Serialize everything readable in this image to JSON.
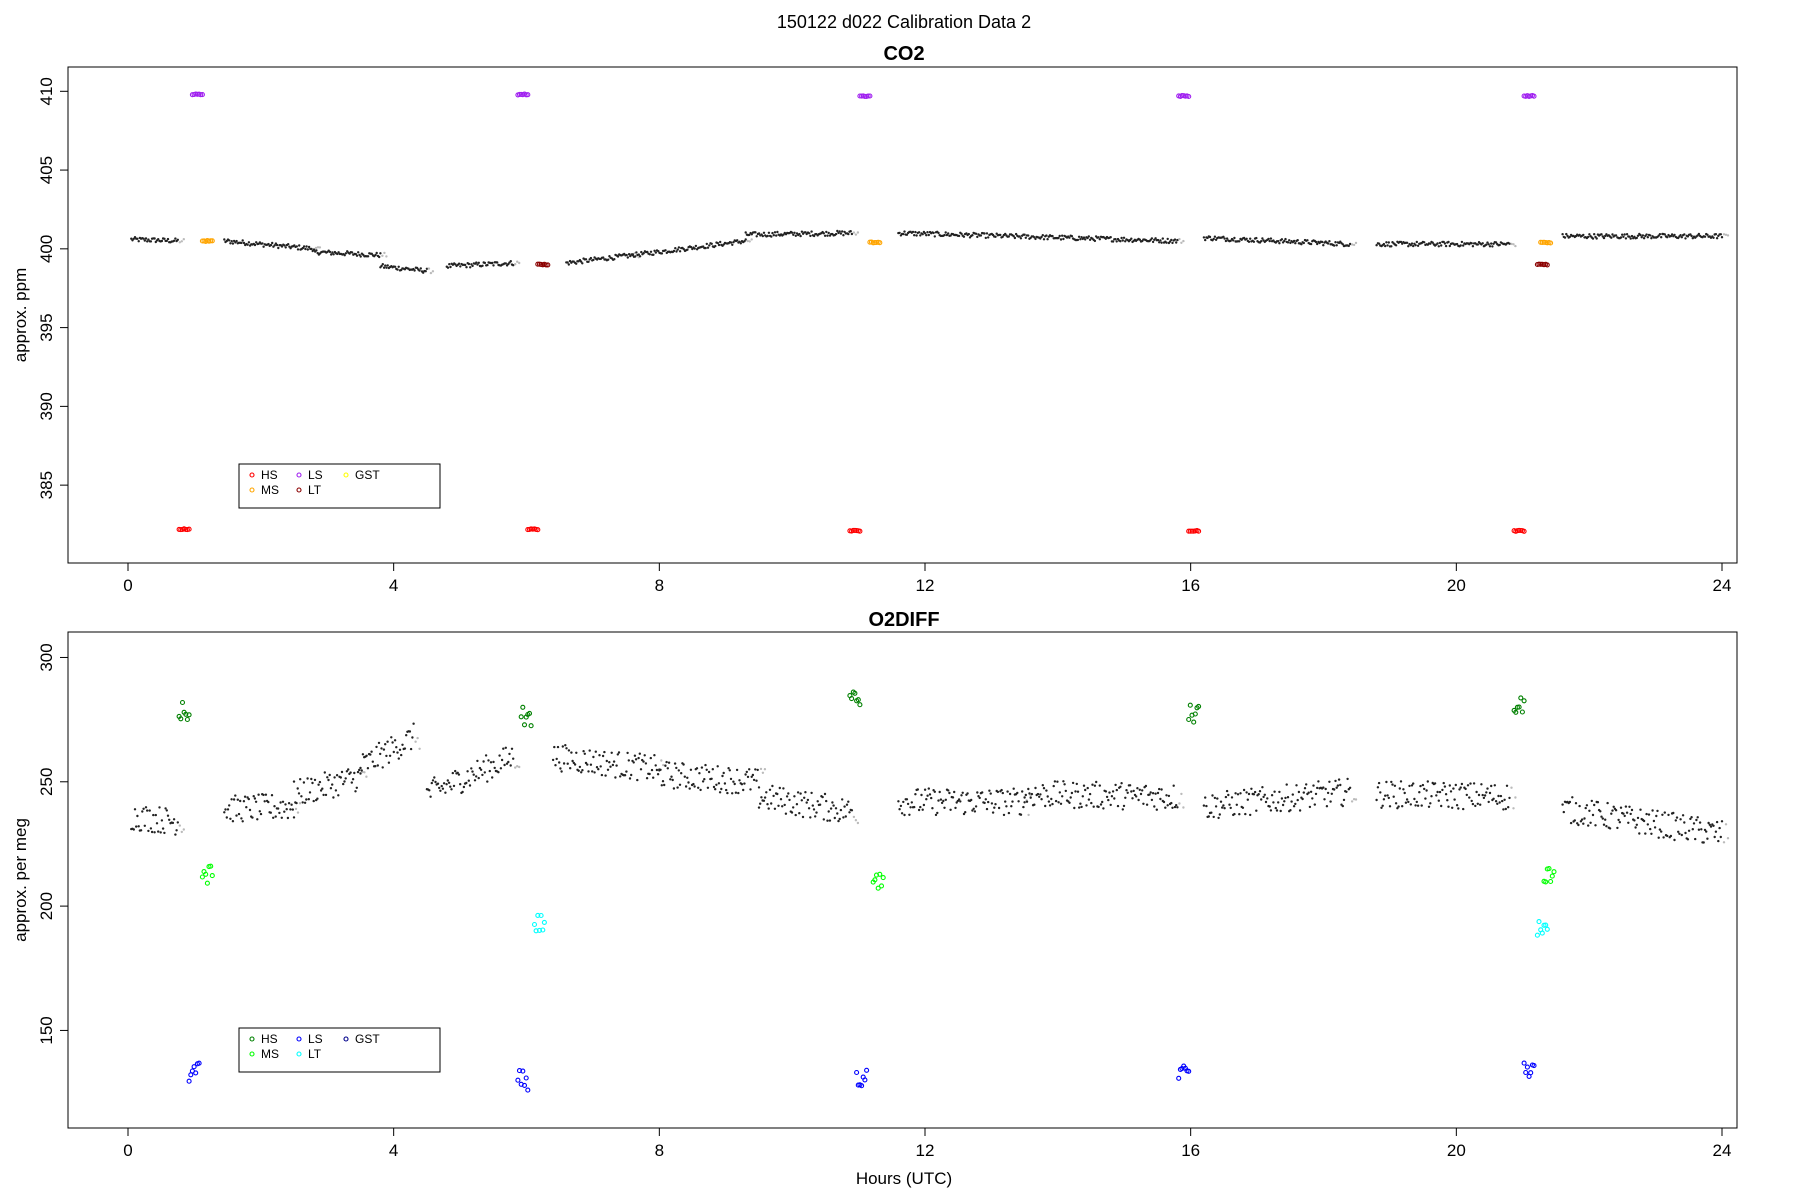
{
  "figure_title": "150122   d022   Calibration Data 2",
  "chart_data": [
    {
      "type": "scatter",
      "title": "CO2",
      "xlabel": "",
      "ylabel": "approx. ppm",
      "xlim": [
        0,
        24
      ],
      "ylim": [
        381.2,
        410.4
      ],
      "xticks": [
        0,
        4,
        8,
        12,
        16,
        20,
        24
      ],
      "yticks": [
        385,
        390,
        395,
        400,
        405,
        410
      ],
      "ambient_segments": [
        {
          "x0": 0.05,
          "x1": 0.75,
          "y0": 400.6,
          "y1": 400.5
        },
        {
          "x0": 1.45,
          "x1": 2.8,
          "y0": 400.5,
          "y1": 400.0
        },
        {
          "x0": 2.8,
          "x1": 3.8,
          "y0": 399.8,
          "y1": 399.6
        },
        {
          "x0": 3.8,
          "x1": 4.5,
          "y0": 398.9,
          "y1": 398.6
        },
        {
          "x0": 4.8,
          "x1": 5.8,
          "y0": 398.9,
          "y1": 399.1
        },
        {
          "x0": 6.6,
          "x1": 7.6,
          "y0": 399.1,
          "y1": 399.6
        },
        {
          "x0": 7.6,
          "x1": 9.3,
          "y0": 399.6,
          "y1": 400.5
        },
        {
          "x0": 9.3,
          "x1": 10.9,
          "y0": 400.9,
          "y1": 401.0
        },
        {
          "x0": 11.6,
          "x1": 15.8,
          "y0": 401.0,
          "y1": 400.5
        },
        {
          "x0": 16.2,
          "x1": 18.4,
          "y0": 400.7,
          "y1": 400.3
        },
        {
          "x0": 18.8,
          "x1": 20.8,
          "y0": 400.3,
          "y1": 400.3
        },
        {
          "x0": 21.6,
          "x1": 24.0,
          "y0": 400.8,
          "y1": 400.8
        }
      ],
      "calibration_groups": [
        {
          "name": "HS",
          "color": "#ff0000",
          "points": [
            [
              0.85,
              382.2
            ],
            [
              6.1,
              382.2
            ],
            [
              10.95,
              382.1
            ],
            [
              16.05,
              382.1
            ],
            [
              20.95,
              382.1
            ]
          ]
        },
        {
          "name": "LS",
          "color": "#a020f0",
          "points": [
            [
              1.05,
              409.8
            ],
            [
              5.95,
              409.8
            ],
            [
              11.1,
              409.7
            ],
            [
              15.9,
              409.7
            ],
            [
              21.1,
              409.7
            ]
          ]
        },
        {
          "name": "MS",
          "color": "#ffa500",
          "points": [
            [
              1.2,
              400.5
            ],
            [
              11.25,
              400.4
            ],
            [
              21.35,
              400.4
            ]
          ]
        },
        {
          "name": "LT",
          "color": "#8b0000",
          "points": [
            [
              6.25,
              399.0
            ],
            [
              21.3,
              399.0
            ]
          ]
        },
        {
          "name": "GST",
          "color": "#ffff00",
          "points": []
        }
      ],
      "legend": {
        "position": "bottom-left",
        "entries": [
          "HS",
          "MS",
          "LS",
          "LT",
          "GST"
        ]
      }
    },
    {
      "type": "scatter",
      "title": "O2DIFF",
      "xlabel": "Hours (UTC)",
      "ylabel": "approx. per meg",
      "xlim": [
        0,
        24
      ],
      "ylim": [
        118,
        303
      ],
      "xticks": [
        0,
        4,
        8,
        12,
        16,
        20,
        24
      ],
      "yticks": [
        150,
        200,
        250,
        300
      ],
      "ambient_segments": [
        {
          "x0": 0.05,
          "x1": 0.75,
          "y0": 236,
          "y1": 234
        },
        {
          "x0": 1.45,
          "x1": 2.5,
          "y0": 239,
          "y1": 240
        },
        {
          "x0": 2.5,
          "x1": 3.5,
          "y0": 245,
          "y1": 252
        },
        {
          "x0": 3.5,
          "x1": 4.3,
          "y0": 256,
          "y1": 268
        },
        {
          "x0": 4.5,
          "x1": 5.8,
          "y0": 245,
          "y1": 260
        },
        {
          "x0": 6.4,
          "x1": 8.0,
          "y0": 260,
          "y1": 255
        },
        {
          "x0": 8.0,
          "x1": 9.5,
          "y0": 253,
          "y1": 250
        },
        {
          "x0": 9.5,
          "x1": 10.9,
          "y0": 244,
          "y1": 238
        },
        {
          "x0": 11.6,
          "x1": 13.5,
          "y0": 242,
          "y1": 242
        },
        {
          "x0": 13.5,
          "x1": 15.8,
          "y0": 245,
          "y1": 244
        },
        {
          "x0": 16.2,
          "x1": 18.4,
          "y0": 240,
          "y1": 246
        },
        {
          "x0": 18.8,
          "x1": 20.8,
          "y0": 245,
          "y1": 244
        },
        {
          "x0": 21.6,
          "x1": 24.0,
          "y0": 239,
          "y1": 229
        }
      ],
      "calibration_groups": [
        {
          "name": "HS",
          "color": "#008000",
          "points": [
            [
              0.85,
              278
            ],
            [
              6.0,
              276
            ],
            [
              10.95,
              283
            ],
            [
              16.05,
              277
            ],
            [
              20.95,
              280
            ]
          ]
        },
        {
          "name": "LS",
          "color": "#0000ff",
          "points": [
            [
              1.0,
              133
            ],
            [
              5.95,
              130
            ],
            [
              11.05,
              130
            ],
            [
              15.9,
              132
            ],
            [
              21.1,
              133
            ]
          ]
        },
        {
          "name": "MS",
          "color": "#00ff00",
          "points": [
            [
              1.2,
              213
            ],
            [
              11.3,
              209
            ],
            [
              21.4,
              213
            ]
          ]
        },
        {
          "name": "LT",
          "color": "#00ffff",
          "points": [
            [
              6.2,
              193
            ],
            [
              21.3,
              190
            ]
          ]
        },
        {
          "name": "GST",
          "color": "#00008b",
          "points": []
        }
      ],
      "legend": {
        "position": "bottom-left",
        "entries": [
          "HS",
          "MS",
          "LS",
          "LT",
          "GST"
        ]
      }
    }
  ]
}
